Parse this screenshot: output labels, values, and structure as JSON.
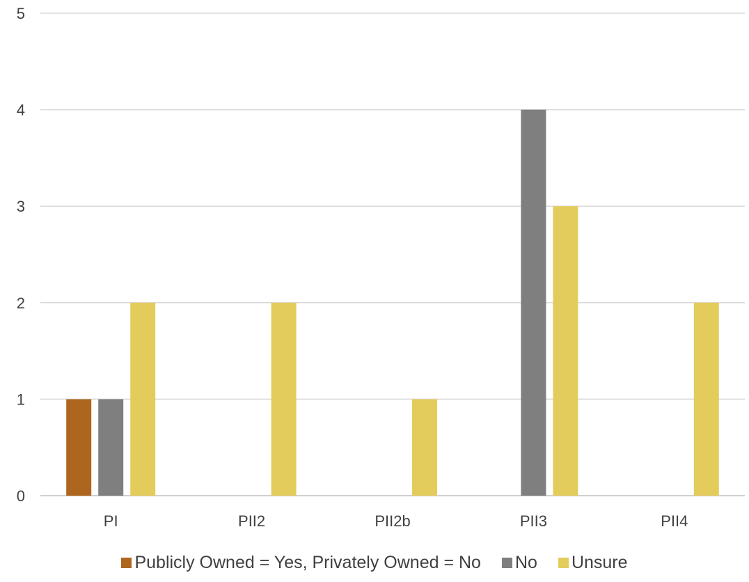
{
  "chart_data": {
    "type": "bar",
    "categories": [
      "PI",
      "PII2",
      "PII2b",
      "PII3",
      "PII4"
    ],
    "series": [
      {
        "name": "Publicly Owned = Yes, Privately Owned = No",
        "values": [
          1,
          0,
          0,
          0,
          0
        ],
        "color": "#ae661f"
      },
      {
        "name": "No",
        "values": [
          1,
          0,
          0,
          4,
          0
        ],
        "color": "#7f7f7f"
      },
      {
        "name": "Unsure",
        "values": [
          2,
          2,
          1,
          3,
          2
        ],
        "color": "#e4cc5c"
      }
    ],
    "yticks": [
      "0",
      "1",
      "2",
      "3",
      "4",
      "5"
    ],
    "ylim": [
      0,
      5
    ],
    "grid": true,
    "legend_position": "bottom",
    "title": "",
    "xlabel": "",
    "ylabel": ""
  }
}
